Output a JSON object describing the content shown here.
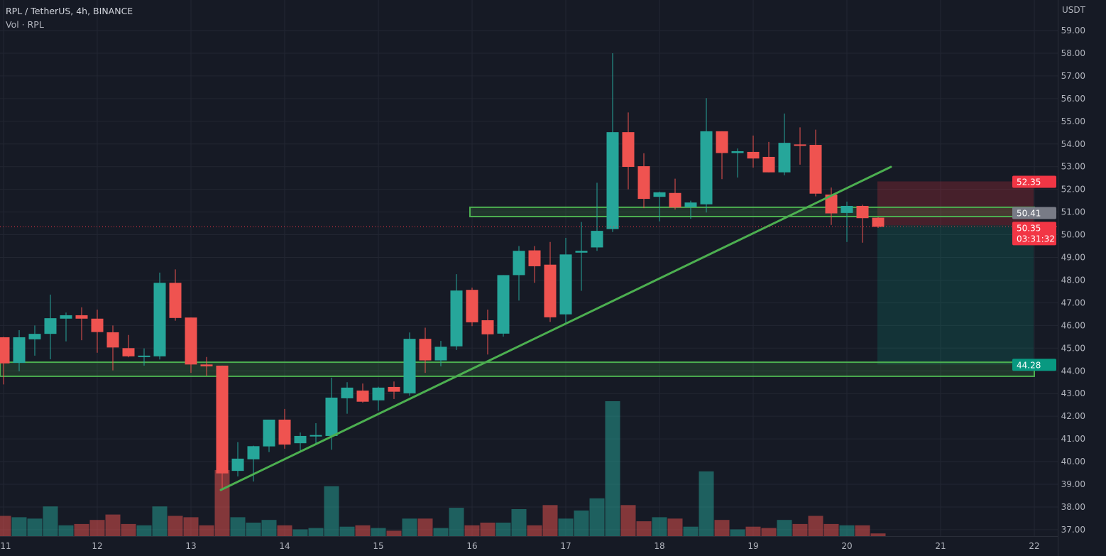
{
  "header": {
    "title": "RPL / TetherUS, 4h, BINANCE",
    "volume_legend": "Vol · RPL"
  },
  "price_axis": {
    "currency": "USDT"
  },
  "colors": {
    "background": "#161a25",
    "grid": "#222632",
    "up": "#26a69a",
    "down": "#ef5350",
    "zone": "#4caf50",
    "stop": "#f23645",
    "target": "#089981",
    "entry_tag": "#787b86"
  },
  "chart_data": {
    "type": "candlestick",
    "title": "RPL / TetherUS, 4h, BINANCE",
    "interval": "4h",
    "ylim": [
      36.7,
      59.5
    ],
    "y_ticks": [
      "37.00",
      "38.00",
      "39.00",
      "40.00",
      "41.00",
      "42.00",
      "43.00",
      "44.00",
      "45.00",
      "46.00",
      "47.00",
      "48.00",
      "49.00",
      "50.00",
      "51.00",
      "52.00",
      "53.00",
      "54.00",
      "55.00",
      "56.00",
      "57.00",
      "58.00",
      "59.00"
    ],
    "x_ticks": [
      "11",
      "12",
      "13",
      "14",
      "15",
      "16",
      "17",
      "18",
      "19",
      "20",
      "21",
      "22"
    ],
    "grid": true,
    "first_candle": "11 00:00",
    "candles": [
      [
        45.48,
        45.5,
        43.4,
        44.33,
        15
      ],
      [
        44.35,
        45.79,
        43.98,
        45.48,
        14
      ],
      [
        45.39,
        46.0,
        44.67,
        45.63,
        13
      ],
      [
        45.63,
        47.36,
        44.51,
        46.32,
        22
      ],
      [
        46.3,
        46.57,
        45.3,
        46.45,
        8
      ],
      [
        46.45,
        46.8,
        45.35,
        46.3,
        9
      ],
      [
        46.3,
        46.7,
        44.8,
        45.71,
        12
      ],
      [
        45.7,
        46.0,
        44.02,
        45.03,
        16
      ],
      [
        45.0,
        45.58,
        44.6,
        44.64,
        9
      ],
      [
        44.62,
        44.99,
        44.23,
        44.67,
        8
      ],
      [
        44.64,
        48.33,
        44.5,
        47.88,
        22
      ],
      [
        47.88,
        48.47,
        46.21,
        46.33,
        15
      ],
      [
        46.35,
        46.35,
        43.91,
        44.28,
        14
      ],
      [
        44.28,
        44.61,
        43.79,
        44.2,
        8
      ],
      [
        44.23,
        44.23,
        38.75,
        39.48,
        49
      ],
      [
        39.59,
        40.86,
        39.35,
        40.13,
        14
      ],
      [
        40.1,
        40.7,
        39.12,
        40.68,
        10
      ],
      [
        40.67,
        41.85,
        40.42,
        41.85,
        12
      ],
      [
        41.85,
        42.32,
        40.57,
        40.75,
        8
      ],
      [
        40.81,
        41.28,
        40.47,
        41.13,
        5
      ],
      [
        41.13,
        41.69,
        40.73,
        41.17,
        6
      ],
      [
        41.13,
        43.7,
        40.52,
        42.82,
        37
      ],
      [
        42.79,
        43.5,
        42.11,
        43.26,
        7
      ],
      [
        43.13,
        43.44,
        42.6,
        42.64,
        8
      ],
      [
        42.7,
        43.3,
        42.24,
        43.26,
        6
      ],
      [
        43.29,
        43.53,
        42.76,
        43.08,
        4
      ],
      [
        43.01,
        45.69,
        42.9,
        45.41,
        13
      ],
      [
        45.41,
        45.9,
        43.91,
        44.46,
        13
      ],
      [
        44.46,
        45.32,
        44.2,
        45.06,
        6
      ],
      [
        45.08,
        48.26,
        44.92,
        47.54,
        21
      ],
      [
        47.57,
        47.67,
        45.97,
        46.14,
        8
      ],
      [
        46.23,
        46.7,
        44.72,
        45.61,
        10
      ],
      [
        45.64,
        48.22,
        45.51,
        48.22,
        10
      ],
      [
        48.22,
        49.5,
        47.1,
        49.29,
        20
      ],
      [
        49.31,
        49.5,
        47.88,
        48.61,
        8
      ],
      [
        48.68,
        49.68,
        46.16,
        46.36,
        23
      ],
      [
        46.49,
        49.86,
        46.07,
        49.13,
        13
      ],
      [
        49.21,
        50.56,
        47.53,
        49.29,
        19
      ],
      [
        49.44,
        52.29,
        49.29,
        50.17,
        28
      ],
      [
        50.25,
        58.0,
        50.12,
        54.52,
        100
      ],
      [
        54.52,
        55.39,
        52.0,
        52.99,
        23
      ],
      [
        53.02,
        53.59,
        51.17,
        51.58,
        11
      ],
      [
        51.67,
        51.9,
        50.59,
        51.87,
        14
      ],
      [
        51.84,
        52.47,
        51.11,
        51.2,
        13
      ],
      [
        51.22,
        51.5,
        50.7,
        51.42,
        7
      ],
      [
        51.34,
        56.02,
        50.98,
        54.56,
        48
      ],
      [
        54.56,
        54.56,
        52.45,
        53.6,
        12
      ],
      [
        53.6,
        53.8,
        52.52,
        53.68,
        5
      ],
      [
        53.65,
        54.37,
        52.96,
        53.36,
        7
      ],
      [
        53.43,
        54.09,
        52.75,
        52.75,
        6
      ],
      [
        52.75,
        55.34,
        52.62,
        54.05,
        12
      ],
      [
        53.98,
        54.73,
        53.09,
        53.94,
        9
      ],
      [
        53.96,
        54.63,
        51.69,
        51.81,
        15
      ],
      [
        51.77,
        52.08,
        50.43,
        50.94,
        9
      ],
      [
        50.96,
        51.46,
        49.68,
        51.27,
        8
      ],
      [
        51.27,
        51.32,
        49.65,
        50.73,
        8
      ],
      [
        50.75,
        50.77,
        50.3,
        50.35,
        2
      ]
    ],
    "candle_fields": [
      "open",
      "high",
      "low",
      "close",
      "volume_relative"
    ],
    "zones": [
      {
        "from": "before 11",
        "to": "22 00:00",
        "top": 44.38,
        "bottom": 43.76
      },
      {
        "from": "16 00:00",
        "to": "22 00:00",
        "top": 51.21,
        "bottom": 50.8
      }
    ],
    "trendline": {
      "from": {
        "time": "13 08:00",
        "price": 38.75
      },
      "to": {
        "time": "20 11:20",
        "price": 52.99
      }
    },
    "short_position": {
      "from": "20 12:00",
      "to": "22 00:00",
      "stop": 52.35,
      "entry": 50.41,
      "target": 44.28
    },
    "last_price": 50.35,
    "countdown": "03:31:32",
    "price_tags": {
      "stop": "52.35",
      "entry": "50.41",
      "last": "50.35",
      "target": "44.28"
    }
  }
}
